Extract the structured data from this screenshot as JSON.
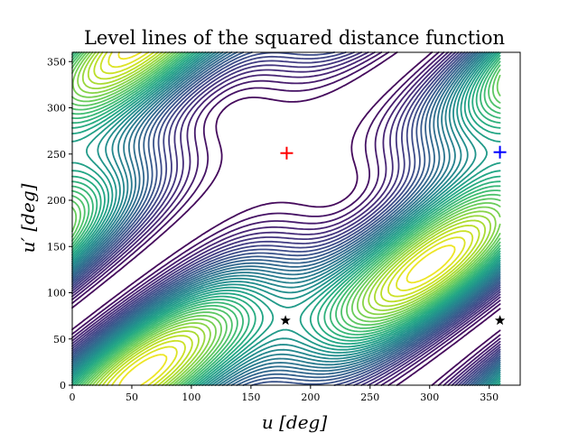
{
  "chart_data": {
    "type": "contour",
    "title": "Level lines of the squared distance function",
    "xlabel": "u [deg]",
    "ylabel": "u′ [deg]",
    "xlim": [
      0,
      376
    ],
    "ylim": [
      0,
      360
    ],
    "xticks": [
      "0",
      "50",
      "100",
      "150",
      "200",
      "250",
      "300",
      "350"
    ],
    "yticks": [
      "0",
      "50",
      "100",
      "150",
      "200",
      "250",
      "300",
      "350"
    ],
    "xtick_values": [
      0,
      50,
      100,
      150,
      200,
      250,
      300,
      350
    ],
    "ytick_values": [
      0,
      50,
      100,
      150,
      200,
      250,
      300,
      350
    ],
    "colormap": "viridis",
    "grid": false,
    "maximum": {
      "u": 180,
      "u_prime": 252
    },
    "markers": [
      {
        "symbol": "plus",
        "color": "#ff0000",
        "u": 180,
        "u_prime": 251
      },
      {
        "symbol": "plus",
        "color": "#0000ff",
        "u": 359,
        "u_prime": 252
      },
      {
        "symbol": "star",
        "color": "#000000",
        "u": 179,
        "u_prime": 70
      },
      {
        "symbol": "star",
        "color": "#000000",
        "u": 359,
        "u_prime": 70
      }
    ]
  }
}
